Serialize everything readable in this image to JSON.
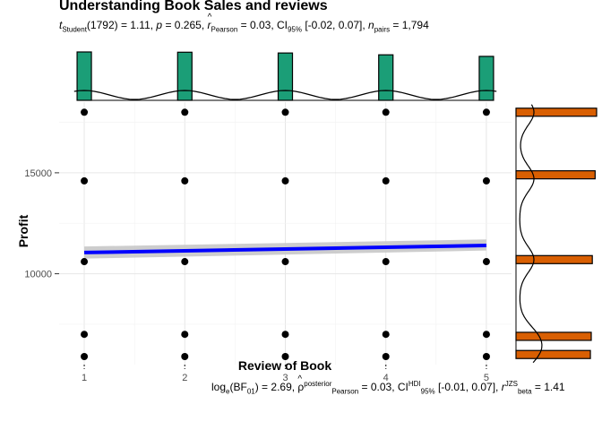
{
  "title": "Understanding Book Sales and reviews",
  "subtitle": {
    "stat": "t",
    "stat_sub": "Student",
    "df": "(1792)",
    "stat_value": " = 1.11, ",
    "p": "p",
    "p_value": " = 0.265, ",
    "r": "r",
    "r_sub": "Pearson",
    "r_value": " = 0.03, CI",
    "ci_sub": "95%",
    "ci_value": " [-0.02, 0.07], ",
    "n": "n",
    "n_sub": "pairs",
    "n_value": " = 1,794"
  },
  "caption": {
    "log": "log",
    "log_sub": "e",
    "bf": "(BF",
    "bf_sub": "01",
    "bf_value": ") = 2.69, ",
    "rho": "ρ",
    "rho_sup": "posterior",
    "rho_sub": "Pearson",
    "rho_value": " = 0.03, CI",
    "hdi_sup": "HDI",
    "hdi_sub": "95%",
    "hdi_value": " [-0.01, 0.07], ",
    "rbeta": "r",
    "rbeta_sup": "JZS",
    "rbeta_sub": "beta",
    "rbeta_value": " = 1.41"
  },
  "chart_data": {
    "type": "scatter",
    "title": "Understanding Book Sales and reviews",
    "xlabel": "Review of Book",
    "ylabel": "Profit",
    "xlim": [
      0.75,
      5.25
    ],
    "ylim": [
      5500,
      18500
    ],
    "x_ticks": [
      1,
      2,
      3,
      4,
      5
    ],
    "y_ticks": [
      10000,
      15000
    ],
    "y_tick_labels": [
      "10000",
      "15000"
    ],
    "grid": true,
    "x": [
      1,
      1,
      1,
      1,
      1,
      2,
      2,
      2,
      2,
      2,
      3,
      3,
      3,
      3,
      3,
      4,
      4,
      4,
      4,
      4,
      5,
      5,
      5,
      5,
      5
    ],
    "y": [
      18000,
      14600,
      10600,
      7000,
      5900,
      18000,
      14600,
      10600,
      7000,
      5900,
      18000,
      14600,
      10600,
      7000,
      5900,
      18000,
      14600,
      10600,
      7000,
      5900,
      18000,
      14600,
      10600,
      7000,
      5900
    ],
    "regression_line": {
      "x": [
        1,
        5
      ],
      "y": [
        11050,
        11400
      ],
      "ci_lower": [
        10750,
        11150
      ],
      "ci_upper": [
        11350,
        11700
      ],
      "color": "#0000ff",
      "band_color": "#c8c8c8"
    },
    "marginal_x": {
      "bins": [
        1,
        2,
        3,
        4,
        5
      ],
      "counts": [
        372,
        370,
        364,
        350,
        338
      ],
      "color": "#1b9e77"
    },
    "marginal_y": {
      "bins": [
        18000,
        14900,
        10700,
        6900,
        6000
      ],
      "counts": [
        375,
        368,
        355,
        350,
        346
      ],
      "color": "#d95f02"
    },
    "point_color": "#000000"
  }
}
